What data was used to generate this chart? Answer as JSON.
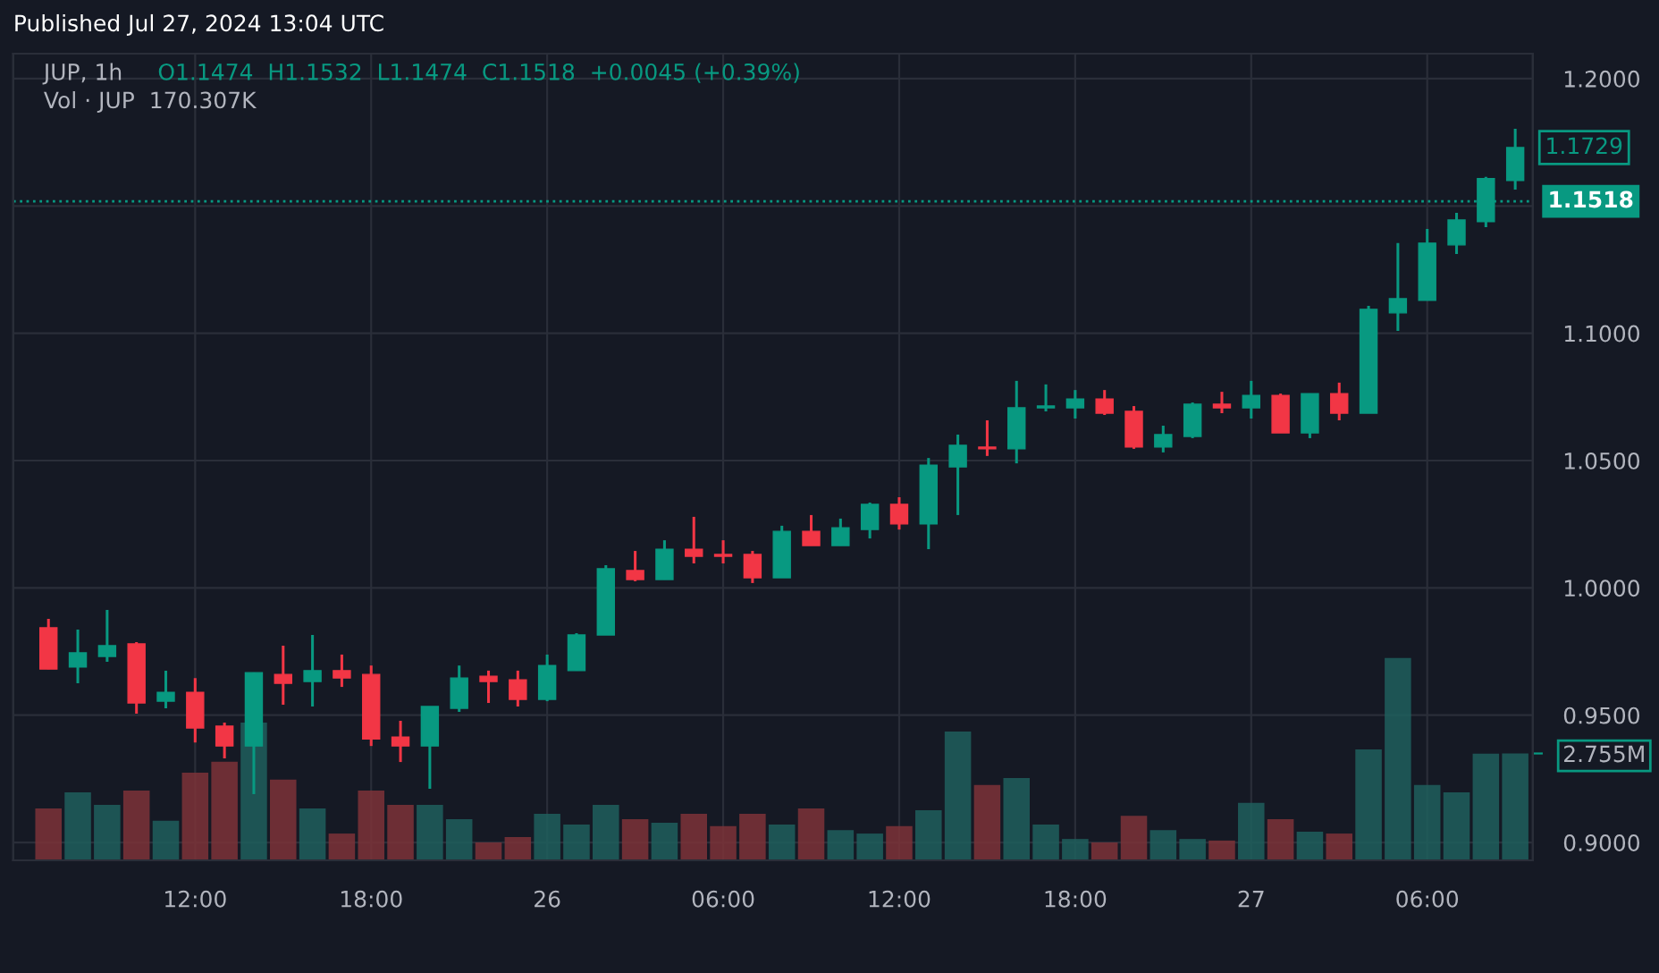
{
  "chart_data": {
    "type": "candlestick",
    "title": "Published Jul 27, 2024 13:04 UTC",
    "subtitle": "JUP, 1h",
    "annotations": [
      "O1.1474  H1.1532  L1.1474  C1.1518  +0.0045 (+0.39%)",
      "Vol · JUP  170.307K",
      {
        "text": "1.1729",
        "x": "2024-07-27T09:00",
        "y": 1.1729
      }
    ],
    "x": [
      "2024-07-25T07:00",
      "2024-07-25T08:00",
      "2024-07-25T09:00",
      "2024-07-25T10:00",
      "2024-07-25T11:00",
      "2024-07-25T12:00",
      "2024-07-25T13:00",
      "2024-07-25T14:00",
      "2024-07-25T15:00",
      "2024-07-25T16:00",
      "2024-07-25T17:00",
      "2024-07-25T18:00",
      "2024-07-25T19:00",
      "2024-07-25T20:00",
      "2024-07-25T21:00",
      "2024-07-25T22:00",
      "2024-07-25T23:00",
      "2024-07-26T00:00",
      "2024-07-26T01:00",
      "2024-07-26T02:00",
      "2024-07-26T03:00",
      "2024-07-26T04:00",
      "2024-07-26T05:00",
      "2024-07-26T06:00",
      "2024-07-26T07:00",
      "2024-07-26T08:00",
      "2024-07-26T09:00",
      "2024-07-26T10:00",
      "2024-07-26T11:00",
      "2024-07-26T12:00",
      "2024-07-26T13:00",
      "2024-07-26T14:00",
      "2024-07-26T15:00",
      "2024-07-26T16:00",
      "2024-07-26T17:00",
      "2024-07-26T18:00",
      "2024-07-26T19:00",
      "2024-07-26T20:00",
      "2024-07-26T21:00",
      "2024-07-26T22:00",
      "2024-07-26T23:00",
      "2024-07-27T00:00",
      "2024-07-27T01:00",
      "2024-07-27T02:00",
      "2024-07-27T03:00",
      "2024-07-27T04:00",
      "2024-07-27T05:00",
      "2024-07-27T06:00",
      "2024-07-27T07:00",
      "2024-07-27T08:00",
      "2024-07-27T09:00"
    ],
    "series": [
      {
        "ohlc": [
          [
            0.9843,
            0.9878,
            0.9681,
            0.9681
          ],
          [
            0.9689,
            0.9836,
            0.9625,
            0.9745
          ],
          [
            0.9731,
            0.9913,
            0.971,
            0.9773
          ],
          [
            0.978,
            0.9787,
            0.9506,
            0.9548
          ],
          [
            0.9555,
            0.9675,
            0.9527,
            0.959
          ],
          [
            0.959,
            0.9646,
            0.9393,
            0.945
          ],
          [
            0.9457,
            0.9471,
            0.933,
            0.9379
          ],
          [
            0.9379,
            0.9667,
            0.919,
            0.9667
          ],
          [
            0.966,
            0.9773,
            0.9541,
            0.9625
          ],
          [
            0.9632,
            0.9815,
            0.9534,
            0.9675
          ],
          [
            0.9675,
            0.9738,
            0.9611,
            0.9646
          ],
          [
            0.966,
            0.9695,
            0.9379,
            0.9407
          ],
          [
            0.9414,
            0.9478,
            0.9316,
            0.9379
          ],
          [
            0.9379,
            0.9534,
            0.9211,
            0.9534
          ],
          [
            0.9527,
            0.9695,
            0.9513,
            0.9646
          ],
          [
            0.9653,
            0.9675,
            0.9548,
            0.9632
          ],
          [
            0.9639,
            0.9675,
            0.9534,
            0.9562
          ],
          [
            0.9562,
            0.9738,
            0.9555,
            0.9695
          ],
          [
            0.9675,
            0.9822,
            0.9675,
            0.9815
          ],
          [
            0.9815,
            1.0089,
            0.9815,
            1.0075
          ],
          [
            1.0068,
            1.0145,
            1.0026,
            1.0033
          ],
          [
            1.0033,
            1.0187,
            1.0033,
            1.0152
          ],
          [
            1.0152,
            1.0279,
            1.0096,
            1.0124
          ],
          [
            1.0131,
            1.0187,
            1.0096,
            1.0124
          ],
          [
            1.0131,
            1.0145,
            1.0019,
            1.004
          ],
          [
            1.004,
            1.0244,
            1.004,
            1.0222
          ],
          [
            1.0222,
            1.0286,
            1.0166,
            1.0166
          ],
          [
            1.0166,
            1.0272,
            1.0166,
            1.0236
          ],
          [
            1.0229,
            1.0335,
            1.0194,
            1.0328
          ],
          [
            1.0328,
            1.0356,
            1.0229,
            1.0251
          ],
          [
            1.0251,
            1.051,
            1.0152,
            1.0482
          ],
          [
            1.0475,
            1.0602,
            1.0286,
            1.056
          ],
          [
            1.0553,
            1.0658,
            1.0518,
            1.0546
          ],
          [
            1.0546,
            1.0813,
            1.0489,
            1.0707
          ],
          [
            1.0707,
            1.0799,
            1.0693,
            1.0714
          ],
          [
            1.0707,
            1.0777,
            1.0665,
            1.0742
          ],
          [
            1.0742,
            1.0777,
            1.0679,
            1.0686
          ],
          [
            1.0693,
            1.0714,
            1.0546,
            1.0553
          ],
          [
            1.0553,
            1.0637,
            1.0532,
            1.0602
          ],
          [
            1.0595,
            1.0728,
            1.0588,
            1.0721
          ],
          [
            1.0721,
            1.077,
            1.0686,
            1.0707
          ],
          [
            1.0707,
            1.0813,
            1.0665,
            1.0756
          ],
          [
            1.0756,
            1.0763,
            1.0609,
            1.0609
          ],
          [
            1.0609,
            1.0763,
            1.0588,
            1.0763
          ],
          [
            1.0763,
            1.0806,
            1.0658,
            1.0686
          ],
          [
            1.0686,
            1.1108,
            1.0686,
            1.1094
          ],
          [
            1.108,
            1.1354,
            1.1009,
            1.1136
          ],
          [
            1.1129,
            1.141,
            1.1129,
            1.1354
          ],
          [
            1.1347,
            1.1473,
            1.1311,
            1.1445
          ],
          [
            1.1438,
            1.1614,
            1.1417,
            1.1607
          ],
          [
            1.16,
            1.1803,
            1.1564,
            1.1729
          ]
        ],
        "colors": [
          "#f23645",
          "#089981",
          "#089981",
          "#f23645",
          "#089981",
          "#f23645",
          "#f23645",
          "#089981",
          "#f23645",
          "#089981",
          "#f23645",
          "#f23645",
          "#f23645",
          "#089981",
          "#089981",
          "#f23645",
          "#f23645",
          "#089981",
          "#089981",
          "#089981",
          "#f23645",
          "#089981",
          "#f23645",
          "#f23645",
          "#f23645",
          "#089981",
          "#f23645",
          "#089981",
          "#089981",
          "#f23645",
          "#089981",
          "#089981",
          "#f23645",
          "#089981",
          "#089981",
          "#089981",
          "#f23645",
          "#f23645",
          "#089981",
          "#089981",
          "#f23645",
          "#089981",
          "#f23645",
          "#089981",
          "#f23645",
          "#089981",
          "#089981",
          "#089981",
          "#089981",
          "#089981",
          "#089981"
        ]
      },
      {
        "type": "bar",
        "axis": "y2",
        "values": [
          1.34,
          1.75,
          1.43,
          1.8,
          1.02,
          2.26,
          2.54,
          3.55,
          2.08,
          1.34,
          0.69,
          1.8,
          1.43,
          1.43,
          1.06,
          0.46,
          0.6,
          1.2,
          0.92,
          1.43,
          1.06,
          0.97,
          1.2,
          0.88,
          1.2,
          0.92,
          1.34,
          0.78,
          0.69,
          0.88,
          1.29,
          3.32,
          1.94,
          2.12,
          0.92,
          0.55,
          0.46,
          1.15,
          0.78,
          0.55,
          0.51,
          1.48,
          1.06,
          0.74,
          0.69,
          2.86,
          5.22,
          1.94,
          1.75,
          2.75,
          2.755
        ],
        "colors": [
          "#7d3338",
          "#1f5f5d",
          "#1f5f5d",
          "#7d3338",
          "#1f5f5d",
          "#7d3338",
          "#7d3338",
          "#1f5f5d",
          "#7d3338",
          "#1f5f5d",
          "#7d3338",
          "#7d3338",
          "#7d3338",
          "#1f5f5d",
          "#1f5f5d",
          "#7d3338",
          "#7d3338",
          "#1f5f5d",
          "#1f5f5d",
          "#1f5f5d",
          "#7d3338",
          "#1f5f5d",
          "#7d3338",
          "#7d3338",
          "#7d3338",
          "#1f5f5d",
          "#7d3338",
          "#1f5f5d",
          "#1f5f5d",
          "#7d3338",
          "#1f5f5d",
          "#1f5f5d",
          "#7d3338",
          "#1f5f5d",
          "#1f5f5d",
          "#1f5f5d",
          "#7d3338",
          "#7d3338",
          "#1f5f5d",
          "#1f5f5d",
          "#7d3338",
          "#1f5f5d",
          "#7d3338",
          "#1f5f5d",
          "#7d3338",
          "#1f5f5d",
          "#1f5f5d",
          "#1f5f5d",
          "#1f5f5d",
          "#1f5f5d",
          "#1f5f5d"
        ]
      }
    ],
    "xlim": [
      "2024-07-25T05:48",
      "2024-07-27T09:36"
    ],
    "xticks": [
      {
        "value": "2024-07-25T12:00",
        "label": "12:00"
      },
      {
        "value": "2024-07-25T18:00",
        "label": "18:00"
      },
      {
        "value": "2024-07-26",
        "label": "26"
      },
      {
        "value": "2024-07-26T06:00",
        "label": "06:00"
      },
      {
        "value": "2024-07-26T12:00",
        "label": "12:00"
      },
      {
        "value": "2024-07-26T18:00",
        "label": "18:00"
      },
      {
        "value": "2024-07-27",
        "label": "27"
      },
      {
        "value": "2024-07-27T06:00",
        "label": "06:00"
      }
    ],
    "ylim": [
      0.893,
      1.2098
    ],
    "yticks": [
      {
        "value": 0.9,
        "label": "0.9000"
      },
      {
        "value": 0.95,
        "label": "0.9500"
      },
      {
        "value": 1.0,
        "label": "1.0000"
      },
      {
        "value": 1.05,
        "label": "1.0500"
      },
      {
        "value": 1.1,
        "label": "1.1000"
      },
      {
        "value": 1.15,
        "label": null
      },
      {
        "value": 1.2,
        "label": "1.2000"
      }
    ],
    "y2lim": [
      0,
      20.8
    ],
    "y2ticks": [
      {
        "value": 2.755,
        "label": "2.755M"
      }
    ],
    "ref_lines": [
      {
        "axis": "y",
        "value": 1.1518,
        "label": "1.1518",
        "color": "#089981",
        "line_style": "dotted"
      }
    ],
    "grid": true
  }
}
